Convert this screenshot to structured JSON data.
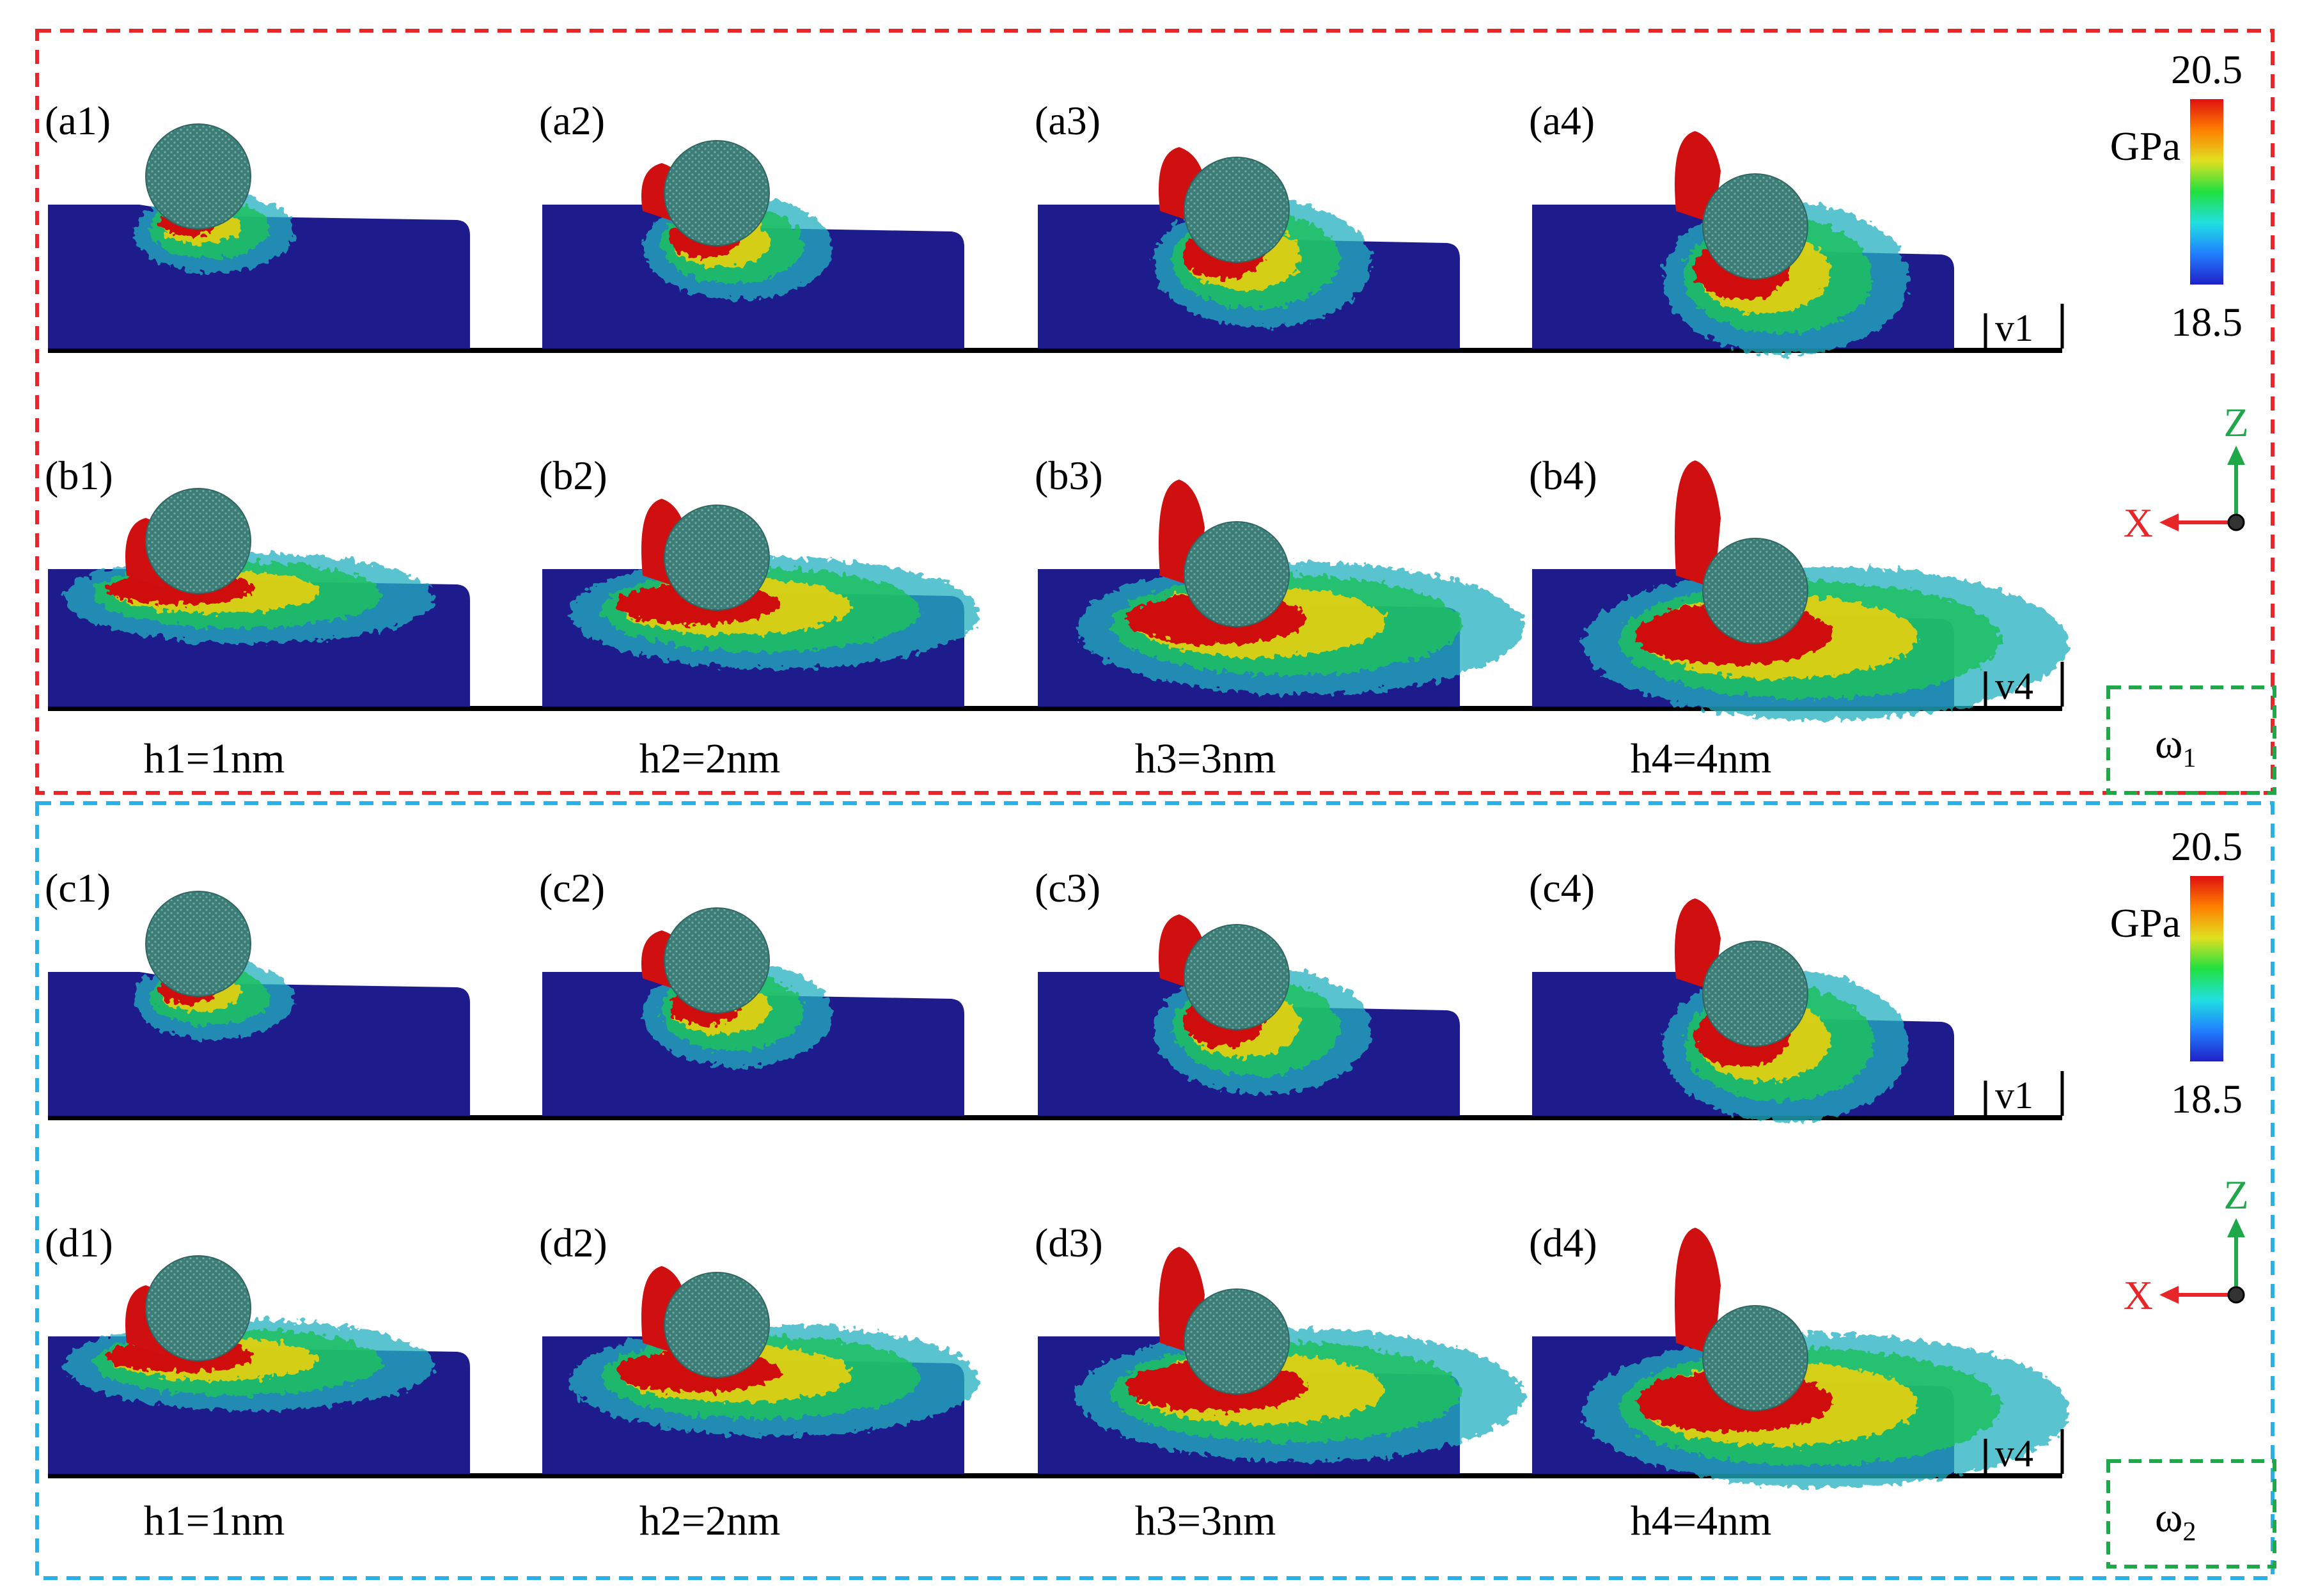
{
  "groups": [
    {
      "id": "omega1",
      "frame_color": "#e8262a",
      "omega_label": "ω",
      "omega_sub": "1",
      "rows": [
        {
          "labels": [
            "(a1)",
            "(a2)",
            "(a3)",
            "(a4)"
          ],
          "speed_label": "v1",
          "variant": "v1"
        },
        {
          "labels": [
            "(b1)",
            "(b2)",
            "(b3)",
            "(b4)"
          ],
          "speed_label": "v4",
          "variant": "v4"
        }
      ],
      "depths": [
        "h1=1nm",
        "h2=2nm",
        "h3=3nm",
        "h4=4nm"
      ],
      "colorbar": {
        "max": "20.5",
        "min": "18.5",
        "unit": "GPa"
      },
      "axes": {
        "z": "Z",
        "x": "X"
      }
    },
    {
      "id": "omega2",
      "frame_color": "#2ab0e6",
      "omega_label": "ω",
      "omega_sub": "2",
      "rows": [
        {
          "labels": [
            "(c1)",
            "(c2)",
            "(c3)",
            "(c4)"
          ],
          "speed_label": "v1",
          "variant": "v1"
        },
        {
          "labels": [
            "(d1)",
            "(d2)",
            "(d3)",
            "(d4)"
          ],
          "speed_label": "v4",
          "variant": "v4"
        }
      ],
      "depths": [
        "h1=1nm",
        "h2=2nm",
        "h3=3nm",
        "h4=4nm"
      ],
      "colorbar": {
        "max": "20.5",
        "min": "18.5",
        "unit": "GPa"
      },
      "axes": {
        "z": "Z",
        "x": "X"
      }
    }
  ],
  "colors": {
    "substrate": "#1e1c8c",
    "tool": "#3d7d78",
    "stress_high": "#d01010",
    "stress_mid": "#e8d010",
    "stress_low": "#20c060",
    "stress_edge": "#20b0c0",
    "omega_box": "#1ea84a",
    "axis_z": "#1ea84a",
    "axis_x": "#e8262a"
  },
  "colorbar_stops": [
    "#2020c8",
    "#2080ff",
    "#20e0e0",
    "#20e040",
    "#e0e020",
    "#ff8000",
    "#e01010"
  ]
}
